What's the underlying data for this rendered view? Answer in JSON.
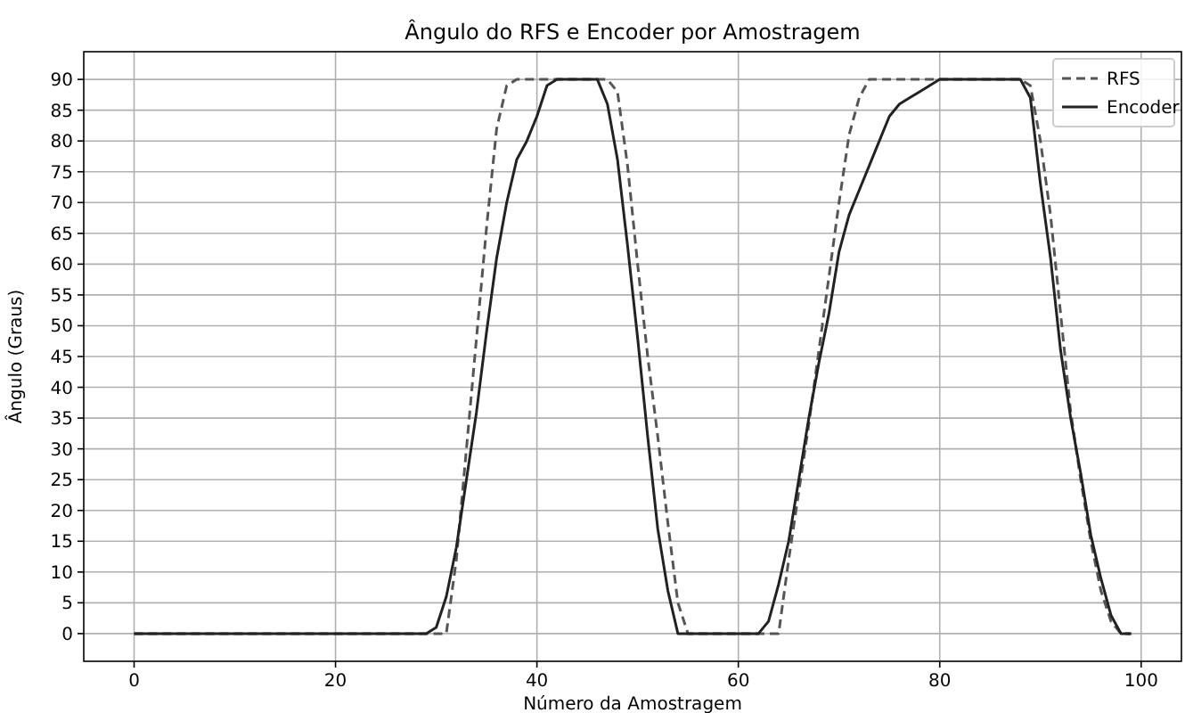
{
  "chart_data": {
    "type": "line",
    "title": "Ângulo do RFS e Encoder por Amostragem",
    "xlabel": "Número da Amostragem",
    "ylabel": "Ângulo (Graus)",
    "x": [
      0,
      1,
      2,
      3,
      4,
      5,
      6,
      7,
      8,
      9,
      10,
      11,
      12,
      13,
      14,
      15,
      16,
      17,
      18,
      19,
      20,
      21,
      22,
      23,
      24,
      25,
      26,
      27,
      28,
      29,
      30,
      31,
      32,
      33,
      34,
      35,
      36,
      37,
      38,
      39,
      40,
      41,
      42,
      43,
      44,
      45,
      46,
      47,
      48,
      49,
      50,
      51,
      52,
      53,
      54,
      55,
      56,
      57,
      58,
      59,
      60,
      61,
      62,
      63,
      64,
      65,
      66,
      67,
      68,
      69,
      70,
      71,
      72,
      73,
      74,
      75,
      76,
      77,
      78,
      79,
      80,
      81,
      82,
      83,
      84,
      85,
      86,
      87,
      88,
      89,
      90,
      91,
      92,
      93,
      94,
      95,
      96,
      97,
      98,
      99
    ],
    "series": [
      {
        "name": "RFS",
        "color": "#555555",
        "line_style": "dashed",
        "values": [
          0,
          0,
          0,
          0,
          0,
          0,
          0,
          0,
          0,
          0,
          0,
          0,
          0,
          0,
          0,
          0,
          0,
          0,
          0,
          0,
          0,
          0,
          0,
          0,
          0,
          0,
          0,
          0,
          0,
          0,
          0,
          0,
          12,
          30,
          48,
          66,
          82,
          89,
          90,
          90,
          90,
          90,
          90,
          90,
          90,
          90,
          90,
          90,
          88,
          76,
          60,
          45,
          32,
          18,
          5,
          0,
          0,
          0,
          0,
          0,
          0,
          0,
          0,
          0,
          0,
          12,
          23,
          34,
          46,
          58,
          70,
          81,
          87,
          90,
          90,
          90,
          90,
          90,
          90,
          90,
          90,
          90,
          90,
          90,
          90,
          90,
          90,
          90,
          90,
          89,
          80,
          68,
          52,
          36,
          25,
          15,
          7,
          2,
          0,
          0
        ]
      },
      {
        "name": "Encoder",
        "color": "#222222",
        "line_style": "solid",
        "values": [
          0,
          0,
          0,
          0,
          0,
          0,
          0,
          0,
          0,
          0,
          0,
          0,
          0,
          0,
          0,
          0,
          0,
          0,
          0,
          0,
          0,
          0,
          0,
          0,
          0,
          0,
          0,
          0,
          0,
          0,
          1,
          6,
          14,
          25,
          36,
          49,
          61,
          70,
          77,
          80,
          84,
          89,
          90,
          90,
          90,
          90,
          90,
          86,
          77,
          63,
          48,
          32,
          17,
          7,
          0,
          0,
          0,
          0,
          0,
          0,
          0,
          0,
          0,
          2,
          8,
          15,
          25,
          35,
          44,
          52,
          62,
          68,
          72,
          76,
          80,
          84,
          86,
          87,
          88,
          89,
          90,
          90,
          90,
          90,
          90,
          90,
          90,
          90,
          90,
          87,
          73,
          61,
          46,
          35,
          26,
          16,
          9,
          3,
          0,
          0
        ]
      }
    ],
    "xlim": [
      -5,
      104
    ],
    "ylim": [
      -4.5,
      94.5
    ],
    "xticks": [
      0,
      20,
      40,
      60,
      80,
      100
    ],
    "yticks": [
      0,
      5,
      10,
      15,
      20,
      25,
      30,
      35,
      40,
      45,
      50,
      55,
      60,
      65,
      70,
      75,
      80,
      85,
      90
    ],
    "grid": true,
    "legend": "top right"
  }
}
